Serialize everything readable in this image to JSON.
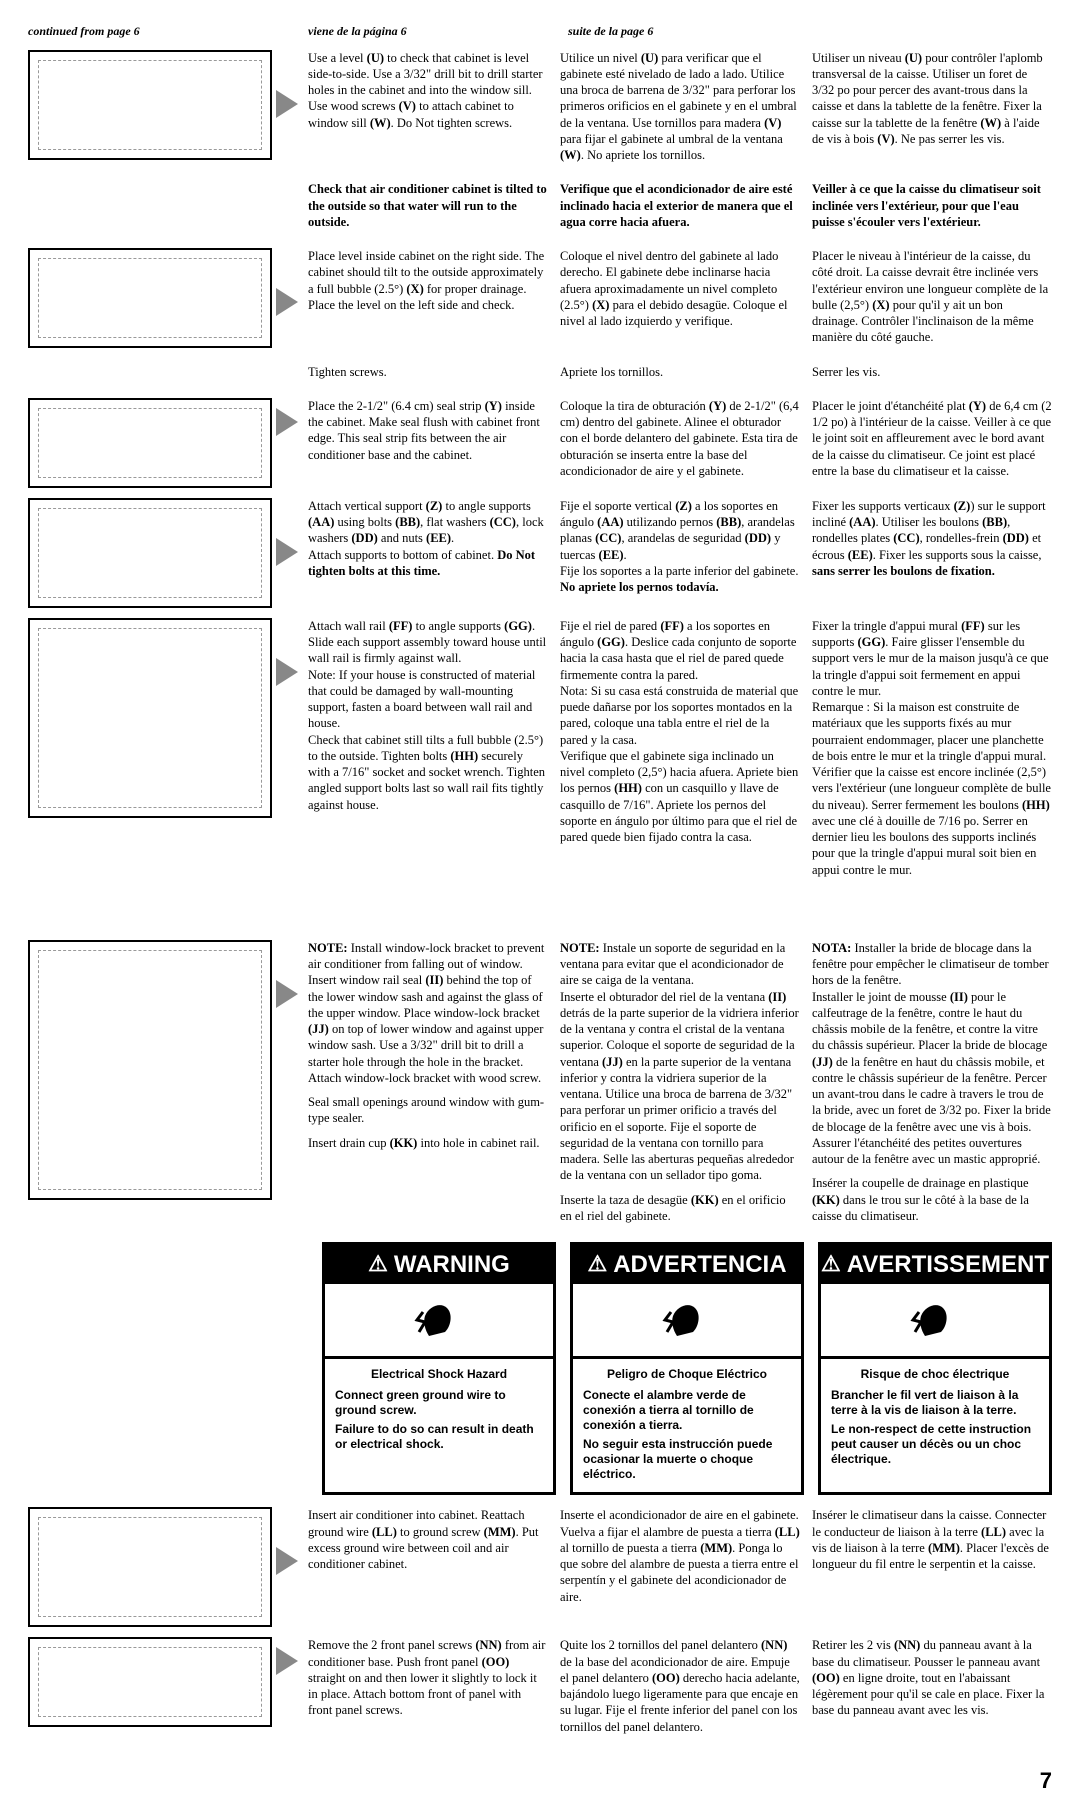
{
  "headers": {
    "en": "continued from page 6",
    "es": "viene de la página 6",
    "fr": "suite de la page 6"
  },
  "rows": [
    {
      "illus_height": 110,
      "en": "Use a level <b>(U)</b> to check that cabinet is level side-to-side. Use a 3/32\" drill bit to drill starter holes in the cabinet and into the window sill. Use wood screws <b>(V)</b> to attach cabinet to window sill <b>(W)</b>. Do Not tighten screws.",
      "es": "Utilice un nivel <b>(U)</b> para verificar que el gabinete esté nivelado de lado a lado. Utilice una broca de barrena de 3/32\" para perforar los primeros orificios en el gabinete y en el umbral de la ventana. Use tornillos para madera <b>(V)</b> para fijar el gabinete al umbral de la ventana <b>(W)</b>. No apriete los tornillos.",
      "fr": "Utiliser un niveau <b>(U)</b> pour contrôler l'aplomb transversal de la caisse. Utiliser un foret de 3/32 po pour percer des avant-trous dans la caisse et dans la tablette de la fenêtre. Fixer la caisse sur la tablette de la fenêtre <b>(W)</b> à l'aide de vis à bois <b>(V)</b>. Ne pas serrer les vis."
    },
    {
      "no_illus": true,
      "bold": true,
      "en": "Check that air conditioner cabinet is tilted to the outside so that water will run to the outside.",
      "es": "Verifique que el acondicionador de aire esté inclinado hacia el exterior de manera que el agua corre hacia afuera.",
      "fr": "Veiller à ce que la caisse du climatiseur soit inclinée vers l'extérieur, pour que l'eau puisse s'écouler vers l'extérieur."
    },
    {
      "illus_height": 100,
      "en": "Place level inside cabinet on the right side. The cabinet should tilt to the outside approximately a full bubble (2.5°) <b>(X)</b> for proper drainage. Place the level on the left side and check.",
      "es": "Coloque el nivel dentro del gabinete al lado derecho. El gabinete debe inclinarse hacia afuera aproximadamente un nivel completo (2.5°) <b>(X)</b> para el debido desagüe. Coloque el nivel al lado izquierdo y verifique.",
      "fr": "Placer le niveau à l'intérieur de la caisse, du côté droit. La caisse devrait être inclinée vers l'extérieur environ une longueur complète de la bulle (2,5°) <b>(X)</b> pour qu'il y ait un bon drainage. Contrôler l'inclinaison de la même manière du côté gauche."
    },
    {
      "no_illus": true,
      "en": "Tighten screws.",
      "es": "Apriete los tornillos.",
      "fr": "Serrer les vis."
    },
    {
      "illus_height": 90,
      "en": "Place the 2-1/2\" (6.4 cm) seal strip <b>(Y)</b> inside the cabinet. Make seal flush with cabinet front edge. This seal strip fits between the air conditioner base and the cabinet.",
      "es": "Coloque la tira de obturación <b>(Y)</b> de 2-1/2\" (6,4 cm) dentro del gabinete. Alinee el obturador con el borde delantero del gabinete. Esta tira de obturación se inserta entre la base del acondicionador de aire y el gabinete.",
      "fr": "Placer le joint d'étanchéité plat <b>(Y)</b> de 6,4 cm (2 1/2 po) à l'intérieur de la caisse. Veiller à ce que le joint soit en affleurement avec le bord avant de la caisse du climatiseur. Ce joint est placé entre la base du climatiseur et la caisse."
    },
    {
      "illus_height": 110,
      "en": "Attach vertical support <b>(Z)</b> to angle supports <b>(AA)</b> using bolts <b>(BB)</b>, flat washers <b>(CC)</b>, lock washers <b>(DD)</b> and nuts <b>(EE)</b>.<br>Attach supports to bottom of cabinet. <b>Do Not tighten bolts at this time.</b>",
      "es": "Fije el soporte vertical <b>(Z)</b> a los soportes en ángulo <b>(AA)</b> utilizando pernos <b>(BB)</b>, arandelas planas <b>(CC)</b>, arandelas de seguridad <b>(DD)</b> y tuercas <b>(EE)</b>.<br>Fije los soportes a la parte inferior del gabinete. <b>No apriete los pernos todavía.</b>",
      "fr": "Fixer les supports verticaux <b>(Z)</b>) sur le support incliné <b>(AA)</b>. Utiliser les boulons <b>(BB)</b>, rondelles plates <b>(CC)</b>, rondelles-frein <b>(DD)</b> et écrous <b>(EE)</b>. Fixer les supports sous la caisse, <b>sans serrer les boulons de fixation.</b>"
    },
    {
      "illus_height": 200,
      "en": "Attach wall rail <b>(FF)</b> to angle supports <b>(GG)</b>. Slide each support assembly toward house until wall rail is firmly against wall.<br>Note: If your house is constructed of material that could be damaged by wall-mounting support, fasten a board between wall rail and house.<br>Check that cabinet still tilts a full bubble (2.5°) to the outside. Tighten bolts <b>(HH)</b> securely with a 7/16\" socket and socket wrench. Tighten angled support bolts last so wall rail fits tightly against house.",
      "es": "Fije el riel de pared <b>(FF)</b> a los soportes en ángulo <b>(GG)</b>. Deslice cada conjunto de soporte hacia la casa hasta que el riel de pared quede firmemente contra la pared.<br>Nota: Si su casa está construida de material que puede dañarse por los soportes montados en la pared, coloque una tabla entre el riel de la pared y la casa.<br>Verifique que el gabinete siga inclinado un nivel completo (2,5°) hacia afuera. Apriete bien los pernos <b>(HH)</b> con un casquillo y llave de casquillo de 7/16\". Apriete los pernos del soporte en ángulo por último para que el riel de pared quede bien fijado contra la casa.",
      "fr": "Fixer la tringle d'appui mural <b>(FF)</b> sur les supports <b>(GG)</b>. Faire glisser l'ensemble du support vers le mur de la maison jusqu'à ce que la tringle d'appui soit fermement en appui contre le mur.<br>Remarque : Si la maison est construite de matériaux que les supports fixés au mur pourraient endommager, placer une planchette de bois entre le mur et la tringle d'appui mural.<br>Vérifier que la caisse est encore inclinée (2,5°) vers l'extérieur (une longueur complète de bulle du niveau). Serrer fermement les boulons <b>(HH)</b> avec une clé à douille de 7/16 po. Serrer en dernier lieu les boulons des supports inclinés pour que la tringle d'appui mural soit bien en appui contre le mur."
    }
  ],
  "rows2": [
    {
      "illus_height": 260,
      "en": "<b>NOTE:</b> Install window-lock bracket to prevent air conditioner from falling out of window.<p>Insert window rail seal <b>(II)</b> behind the top of the lower window sash and against the glass of the upper window. Place window-lock bracket <b>(JJ)</b> on top of lower window and against upper window sash. Use a 3/32\" drill bit to drill a starter hole through the hole in the bracket. Attach window-lock bracket with wood screw.</p><p>Seal small openings around window with gum-type sealer.</p><p>Insert drain cup <b>(KK)</b> into hole in cabinet rail.</p>",
      "es": "<b>NOTE:</b> Instale un soporte de seguridad en la ventana para evitar que el acondicionador de aire se caiga de la ventana.<p>Inserte el obturador del riel de la ventana <b>(II)</b> detrás de la parte superior de la vidriera inferior de la ventana y contra el cristal de la ventana superior. Coloque el soporte de seguridad de la ventana <b>(JJ)</b> en la parte superior de la ventana inferior y contra la vidriera superior de la ventana. Utilice una broca de barrena de 3/32\" para perforar un primer orificio a través del orificio en el soporte. Fije el soporte de seguridad de la ventana con tornillo para madera. Selle las aberturas pequeñas alrededor de la ventana con un sellador tipo goma.</p><p>Inserte la taza de desagüe <b>(KK)</b> en el orificio en el riel del gabinete.</p>",
      "fr": "<b>NOTA:</b> Installer la bride de blocage dans la fenêtre pour empêcher le climatiseur de tomber hors de la fenêtre.<p>Installer le joint de mousse <b>(II)</b> pour le calfeutrage de la fenêtre, contre le haut du châssis mobile de la fenêtre, et contre la vitre du châssis supérieur. Placer la bride de blocage <b>(JJ)</b> de la fenêtre en haut du châssis mobile, et contre le châssis supérieur de la fenêtre. Percer un avant-trou dans le cadre à travers le trou de la bride, avec un foret de 3/32 po. Fixer la bride de blocage de la fenêtre avec une vis à bois. Assurer l'étanchéité des petites ouvertures autour de la fenêtre avec un mastic approprié.</p><p>Insérer la coupelle de drainage en plastique <b>(KK)</b> dans le trou sur le côté à la base de la caisse du climatiseur.</p>"
    }
  ],
  "warning": {
    "en": {
      "banner": "WARNING",
      "title": "Electrical Shock Hazard",
      "l1": "Connect green ground wire to ground screw.",
      "l2": "Failure to do so can result in death or electrical shock."
    },
    "es": {
      "banner": "ADVERTENCIA",
      "title": "Peligro de Choque Eléctrico",
      "l1": "Conecte el alambre verde de conexión a tierra al tornillo de conexión a tierra.",
      "l2": "No seguir esta instrucción puede ocasionar la muerte o choque eléctrico."
    },
    "fr": {
      "banner": "AVERTISSEMENT",
      "title": "Risque de choc électrique",
      "l1": "Brancher le fil vert de liaison à la terre à la vis de liaison à la terre.",
      "l2": "Le non-respect de cette instruction peut causer un décès ou un choc électrique."
    }
  },
  "rows3": [
    {
      "illus_height": 120,
      "en": "Insert air conditioner into cabinet. Reattach ground wire <b>(LL)</b> to ground screw <b>(MM)</b>. Put excess ground wire between coil and air conditioner cabinet.",
      "es": "Inserte el acondicionador de aire en el gabinete. Vuelva a fijar el alambre de puesta a tierra <b>(LL)</b> al tornillo de puesta a tierra <b>(MM)</b>. Ponga lo que sobre del alambre de puesta a tierra entre el serpentín y el gabinete del acondicionador de aire.",
      "fr": "Insérer le climatiseur dans la caisse. Connecter le conducteur de liaison à la terre <b>(LL)</b> avec la vis de liaison à la terre <b>(MM)</b>. Placer l'excès de longueur du fil entre le serpentin et la caisse."
    },
    {
      "illus_height": 90,
      "en": "Remove the 2 front panel screws <b>(NN)</b> from air conditioner base. Push front panel <b>(OO)</b> straight on and then lower it slightly to lock it in place. Attach bottom front of panel with front panel screws.",
      "es": "Quite los 2 tornillos del panel delantero <b>(NN)</b> de la base del acondicionador de aire. Empuje el panel delantero <b>(OO)</b> derecho hacia adelante, bajándolo luego ligeramente para que encaje en su lugar. Fije el frente inferior del panel con los tornillos del panel delantero.",
      "fr": "Retirer les 2 vis <b>(NN)</b> du panneau avant à la base du climatiseur. Pousser le panneau avant <b>(OO)</b> en ligne droite, tout en l'abaissant légèrement pour qu'il se cale en place. Fixer la base du panneau avant avec les vis."
    }
  ],
  "page_num": "7"
}
